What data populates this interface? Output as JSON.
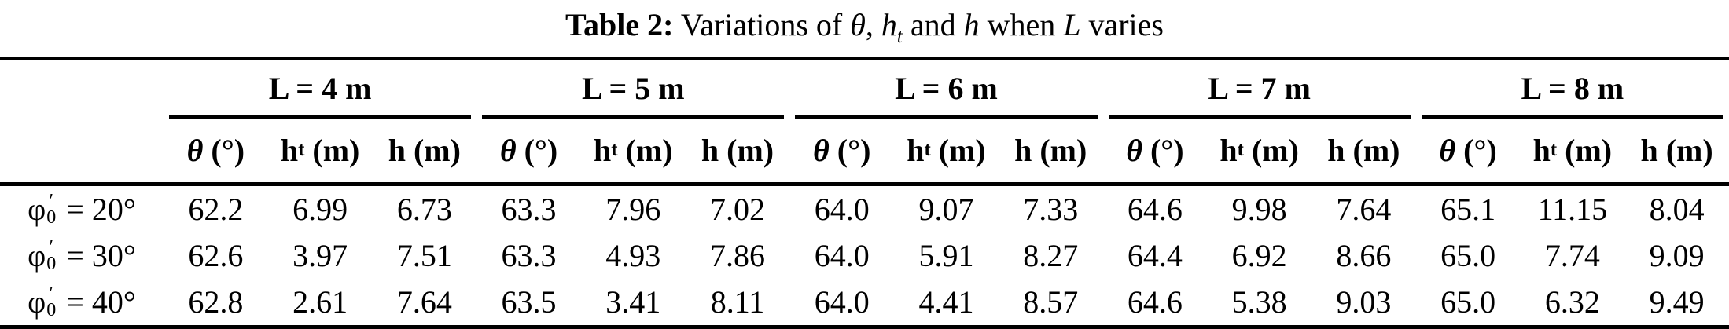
{
  "title": {
    "label_bold": "Table 2:",
    "seg_variations": " Variations of ",
    "theta": "θ",
    "comma": ", ",
    "h1": "h",
    "sub_t": "t",
    "seg_and": " and ",
    "h2": "h",
    "seg_when": " when ",
    "L": "L",
    "seg_varies": " varies"
  },
  "header": {
    "groups": [
      {
        "label": "L = 4 m"
      },
      {
        "label": "L = 5 m"
      },
      {
        "label": "L = 6 m"
      },
      {
        "label": "L = 7 m"
      },
      {
        "label": "L = 8 m"
      }
    ],
    "subcols": {
      "theta_symbol": "θ",
      "theta_unit": " (°)",
      "ht_symbol": "h",
      "ht_sub": "t",
      "ht_unit": " (m)",
      "h_symbol": "h",
      "h_unit": " (m)"
    }
  },
  "rows": [
    {
      "label": {
        "phi": "φ",
        "prime": "′",
        "sub": "0",
        "eq": " = ",
        "value": "20°"
      },
      "values": [
        "62.2",
        "6.99",
        "6.73",
        "63.3",
        "7.96",
        "7.02",
        "64.0",
        "9.07",
        "7.33",
        "64.6",
        "9.98",
        "7.64",
        "65.1",
        "11.15",
        "8.04"
      ]
    },
    {
      "label": {
        "phi": "φ",
        "prime": "′",
        "sub": "0",
        "eq": " = ",
        "value": "30°"
      },
      "values": [
        "62.6",
        "3.97",
        "7.51",
        "63.3",
        "4.93",
        "7.86",
        "64.0",
        "5.91",
        "8.27",
        "64.4",
        "6.92",
        "8.66",
        "65.0",
        "7.74",
        "9.09"
      ]
    },
    {
      "label": {
        "phi": "φ",
        "prime": "′",
        "sub": "0",
        "eq": " = ",
        "value": "40°"
      },
      "values": [
        "62.8",
        "2.61",
        "7.64",
        "63.5",
        "3.41",
        "8.11",
        "64.0",
        "4.41",
        "8.57",
        "64.6",
        "5.38",
        "9.03",
        "65.0",
        "6.32",
        "9.49"
      ]
    }
  ]
}
